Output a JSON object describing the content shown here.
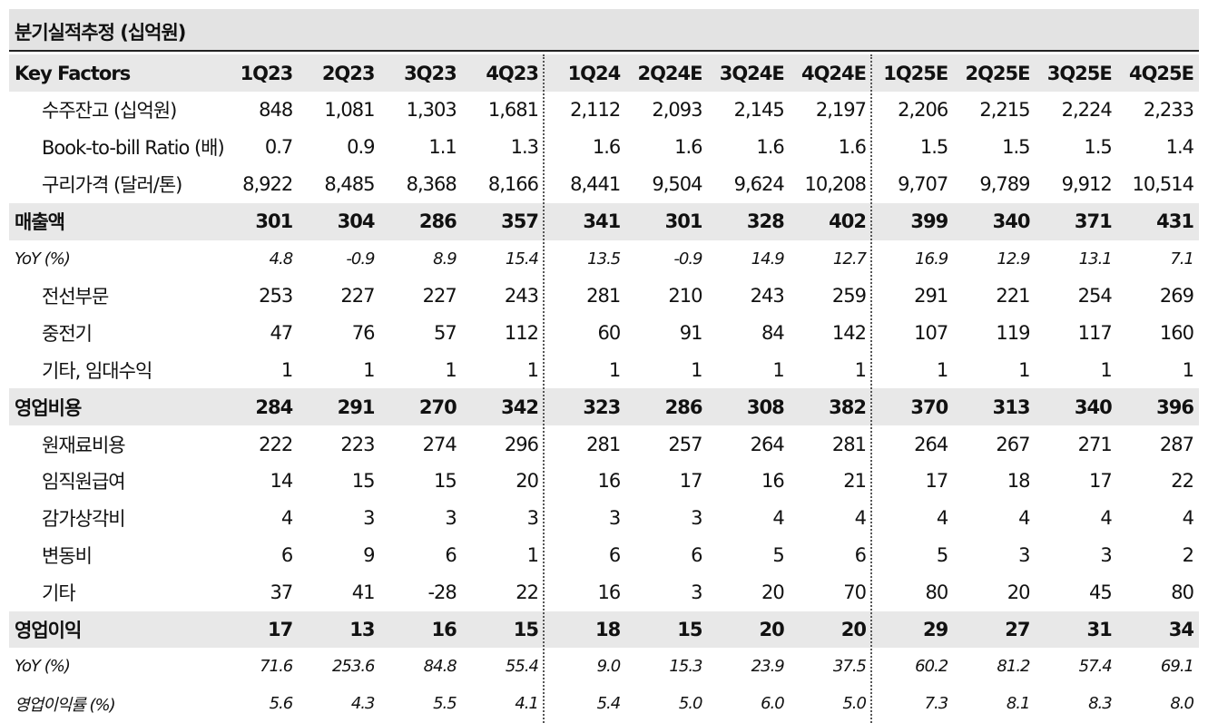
{
  "title": "분기실적추정 (십억원)",
  "table": {
    "header": [
      "Key Factors",
      "1Q23",
      "2Q23",
      "3Q23",
      "4Q23",
      "1Q24",
      "2Q24E",
      "3Q24E",
      "4Q24E",
      "1Q25E",
      "2Q25E",
      "3Q25E",
      "4Q25E"
    ],
    "rows": [
      [
        "수주잔고 (십억원)",
        "848",
        "1,081",
        "1,303",
        "1,681",
        "2,112",
        "2,093",
        "2,145",
        "2,197",
        "2,206",
        "2,215",
        "2,224",
        "2,233"
      ],
      [
        "Book-to-bill Ratio (배)",
        "0.7",
        "0.9",
        "1.1",
        "1.3",
        "1.6",
        "1.6",
        "1.6",
        "1.6",
        "1.5",
        "1.5",
        "1.5",
        "1.4"
      ],
      [
        "구리가격 (달러/톤)",
        "8,922",
        "8,485",
        "8,368",
        "8,166",
        "8,441",
        "9,504",
        "9,624",
        "10,208",
        "9,707",
        "9,789",
        "9,912",
        "10,514"
      ],
      [
        "매출액",
        "301",
        "304",
        "286",
        "357",
        "341",
        "301",
        "328",
        "402",
        "399",
        "340",
        "371",
        "431"
      ],
      [
        "YoY (%)",
        "4.8",
        "-0.9",
        "8.9",
        "15.4",
        "13.5",
        "-0.9",
        "14.9",
        "12.7",
        "16.9",
        "12.9",
        "13.1",
        "7.1"
      ],
      [
        "전선부문",
        "253",
        "227",
        "227",
        "243",
        "281",
        "210",
        "243",
        "259",
        "291",
        "221",
        "254",
        "269"
      ],
      [
        "중전기",
        "47",
        "76",
        "57",
        "112",
        "60",
        "91",
        "84",
        "142",
        "107",
        "119",
        "117",
        "160"
      ],
      [
        "기타, 임대수익",
        "1",
        "1",
        "1",
        "1",
        "1",
        "1",
        "1",
        "1",
        "1",
        "1",
        "1",
        "1"
      ],
      [
        "영업비용",
        "284",
        "291",
        "270",
        "342",
        "323",
        "286",
        "308",
        "382",
        "370",
        "313",
        "340",
        "396"
      ],
      [
        "원재료비용",
        "222",
        "223",
        "274",
        "296",
        "281",
        "257",
        "264",
        "281",
        "264",
        "267",
        "271",
        "287"
      ],
      [
        "임직원급여",
        "14",
        "15",
        "15",
        "20",
        "16",
        "17",
        "16",
        "21",
        "17",
        "18",
        "17",
        "22"
      ],
      [
        "감가상각비",
        "4",
        "3",
        "3",
        "3",
        "3",
        "3",
        "4",
        "4",
        "4",
        "4",
        "4",
        "4"
      ],
      [
        "변동비",
        "6",
        "9",
        "6",
        "1",
        "6",
        "6",
        "5",
        "6",
        "5",
        "3",
        "3",
        "2"
      ],
      [
        "기타",
        "37",
        "41",
        "-28",
        "22",
        "16",
        "3",
        "20",
        "70",
        "80",
        "20",
        "45",
        "80"
      ],
      [
        "영업이익",
        "17",
        "13",
        "16",
        "15",
        "18",
        "15",
        "20",
        "20",
        "29",
        "27",
        "31",
        "34"
      ],
      [
        "YoY (%)",
        "71.6",
        "253.6",
        "84.8",
        "55.4",
        "9.0",
        "15.3",
        "23.9",
        "37.5",
        "60.2",
        "81.2",
        "57.4",
        "69.1"
      ],
      [
        "영업이익률 (%)",
        "5.6",
        "4.3",
        "5.5",
        "4.1",
        "5.4",
        "5.0",
        "6.0",
        "5.0",
        "7.3",
        "8.1",
        "8.3",
        "8.0"
      ]
    ]
  }
}
